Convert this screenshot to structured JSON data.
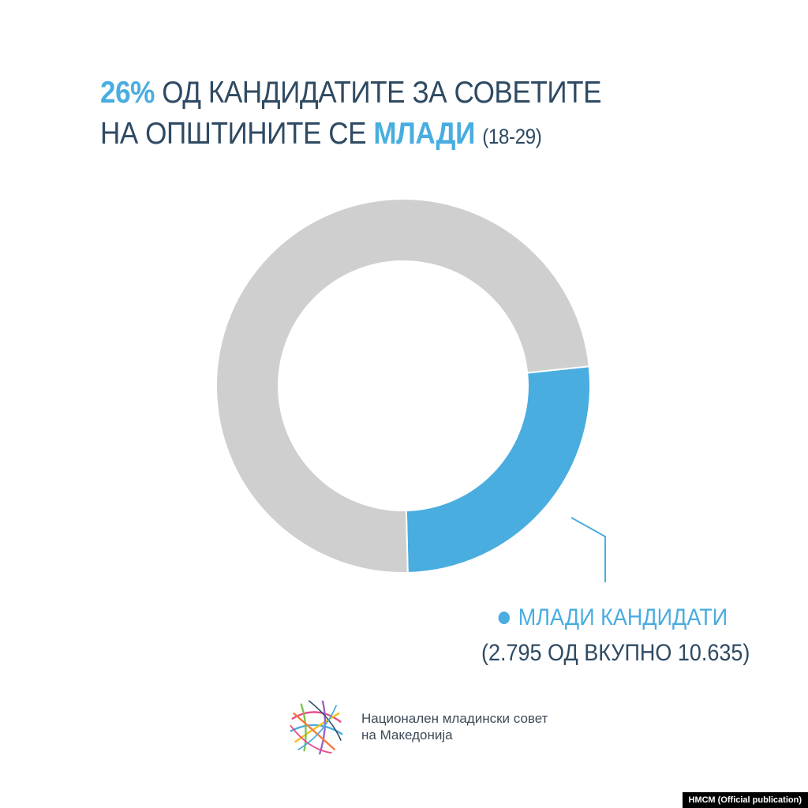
{
  "title": {
    "line1_highlight": "26%",
    "line1_rest": "ОД КАНДИДАТИТЕ ЗА СОВЕТИТЕ",
    "line2_lead": "НА ОПШТИНИТЕ СЕ",
    "line2_highlight": "МЛАДИ",
    "line2_age": "(18-29)"
  },
  "chart_data": {
    "type": "pie",
    "title": "26% ОД КАНДИДАТИТЕ ЗА СОВЕТИТЕ НА ОПШТИНИТЕ СЕ МЛАДИ (18-29)",
    "total": 10635,
    "slices": [
      {
        "label": "МЛАДИ КАНДИДАТИ",
        "value": 2795,
        "color": "#49ade0"
      },
      {
        "label": "",
        "value": 7840,
        "color": "#cfcfcf"
      }
    ],
    "legend": {
      "label": "МЛАДИ КАНДИДАТИ",
      "detail": "(2.795 ОД ВКУПНО 10.635)",
      "placement": "bottom-right"
    }
  },
  "organization": {
    "name": "Национален младински совет\nна Македонија",
    "logo_icon": "multicolor-globe-icon"
  },
  "credit": "НМСМ (Official publication)",
  "colors": {
    "accent": "#49ade0",
    "rest": "#cfcfcf",
    "text": "#2f4a63"
  }
}
